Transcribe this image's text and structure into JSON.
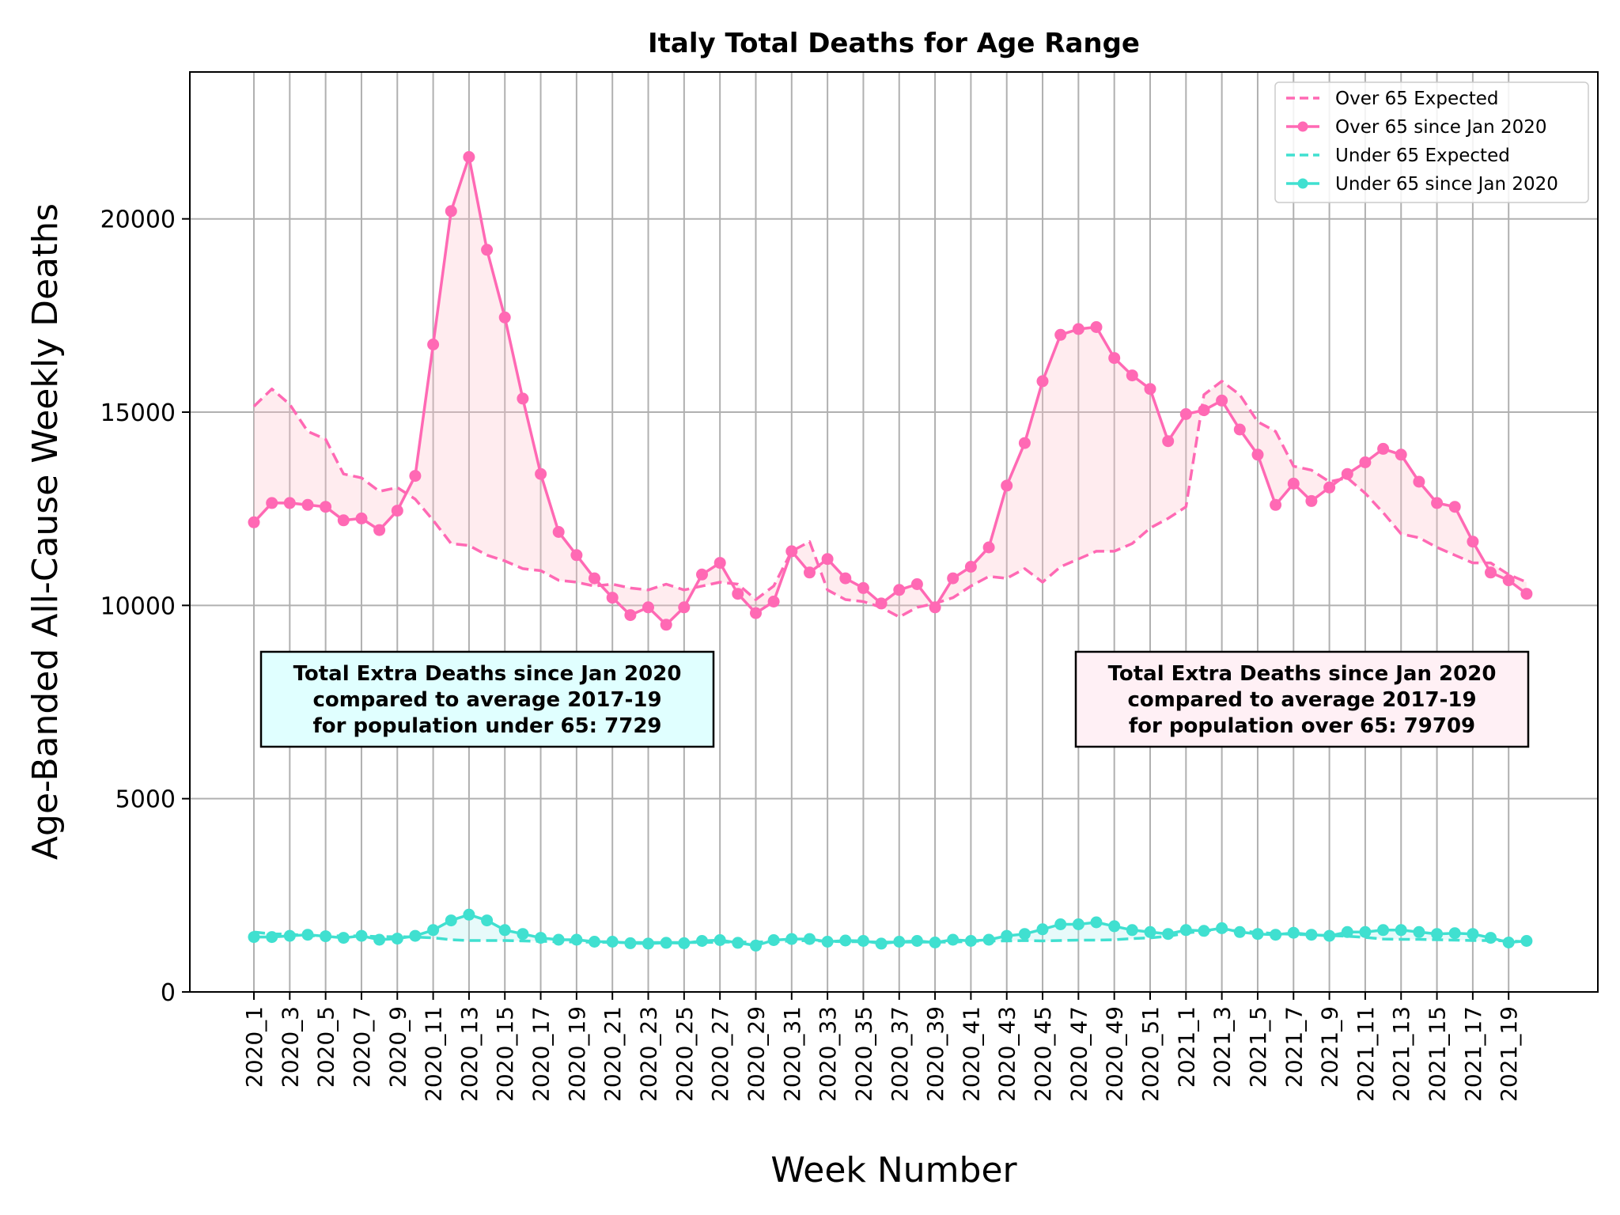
{
  "chart_data": {
    "type": "line",
    "title": "Italy Total Deaths for Age Range",
    "xlabel": "Week Number",
    "ylabel": "Age-Banded All-Cause Weekly Deaths",
    "ylim": [
      0,
      23800
    ],
    "yticks": [
      0,
      5000,
      10000,
      15000,
      20000
    ],
    "grid": true,
    "legend_position": "top-right",
    "x_tick_labels": [
      "2020_1",
      "2020_3",
      "2020_5",
      "2020_7",
      "2020_9",
      "2020_11",
      "2020_13",
      "2020_15",
      "2020_17",
      "2020_19",
      "2020_21",
      "2020_23",
      "2020_25",
      "2020_27",
      "2020_29",
      "2020_31",
      "2020_33",
      "2020_35",
      "2020_37",
      "2020_39",
      "2020_41",
      "2020_43",
      "2020_45",
      "2020_47",
      "2020_49",
      "2020_51",
      "2021_1",
      "2021_3",
      "2021_5",
      "2021_7",
      "2021_9",
      "2021_11",
      "2021_13",
      "2021_15",
      "2021_17",
      "2021_19"
    ],
    "x": [
      "2020_1",
      "2020_2",
      "2020_3",
      "2020_4",
      "2020_5",
      "2020_6",
      "2020_7",
      "2020_8",
      "2020_9",
      "2020_10",
      "2020_11",
      "2020_12",
      "2020_13",
      "2020_14",
      "2020_15",
      "2020_16",
      "2020_17",
      "2020_18",
      "2020_19",
      "2020_20",
      "2020_21",
      "2020_22",
      "2020_23",
      "2020_24",
      "2020_25",
      "2020_26",
      "2020_27",
      "2020_28",
      "2020_29",
      "2020_30",
      "2020_31",
      "2020_32",
      "2020_33",
      "2020_34",
      "2020_35",
      "2020_36",
      "2020_37",
      "2020_38",
      "2020_39",
      "2020_40",
      "2020_41",
      "2020_42",
      "2020_43",
      "2020_44",
      "2020_45",
      "2020_46",
      "2020_47",
      "2020_48",
      "2020_49",
      "2020_50",
      "2020_51",
      "2020_52",
      "2021_1",
      "2021_2",
      "2021_3",
      "2021_4",
      "2021_5",
      "2021_6",
      "2021_7",
      "2021_8",
      "2021_9",
      "2021_10",
      "2021_11",
      "2021_12",
      "2021_13",
      "2021_14",
      "2021_15",
      "2021_16",
      "2021_17",
      "2021_18",
      "2021_19",
      "2021_20"
    ],
    "series": [
      {
        "name": "Over 65 Expected",
        "style": "dashed",
        "color": "#ff69b4",
        "values": [
          15150,
          15600,
          15200,
          14500,
          14300,
          13400,
          13300,
          12950,
          13050,
          12750,
          12200,
          11600,
          11550,
          11300,
          11150,
          10950,
          10900,
          10650,
          10600,
          10500,
          10550,
          10450,
          10400,
          10550,
          10400,
          10500,
          10600,
          10550,
          10150,
          10500,
          11400,
          11650,
          10400,
          10150,
          10100,
          9950,
          9700,
          9950,
          10050,
          10200,
          10500,
          10750,
          10700,
          10950,
          10600,
          11000,
          11200,
          11400,
          11400,
          11600,
          12000,
          12250,
          12550,
          15450,
          15800,
          15450,
          14750,
          14500,
          13600,
          13500,
          13200,
          13300,
          12900,
          12400,
          11850,
          11750,
          11500,
          11300,
          11100,
          11100,
          10800,
          10600
        ]
      },
      {
        "name": "Over 65 since Jan 2020",
        "style": "solid-markers",
        "color": "#ff69b4",
        "values": [
          12150,
          12650,
          12650,
          12600,
          12550,
          12200,
          12250,
          11950,
          12450,
          13350,
          16750,
          20200,
          21600,
          19200,
          17450,
          15350,
          13400,
          11900,
          11300,
          10700,
          10200,
          9750,
          9950,
          9500,
          9950,
          10800,
          11100,
          10300,
          9800,
          10100,
          11400,
          10850,
          11200,
          10700,
          10450,
          10050,
          10400,
          10550,
          9950,
          10700,
          11000,
          11500,
          13100,
          14200,
          15800,
          17000,
          17150,
          17200,
          16400,
          15950,
          15600,
          14250,
          14950,
          15050,
          15300,
          14550,
          13900,
          12600,
          13150,
          12700,
          13050,
          13400,
          13700,
          14050,
          13900,
          13200,
          12650,
          12550,
          11650,
          10850,
          10650,
          10300
        ]
      },
      {
        "name": "Under 65 Expected",
        "style": "dashed",
        "color": "#40e0d0",
        "values": [
          1550,
          1500,
          1500,
          1450,
          1450,
          1450,
          1450,
          1430,
          1430,
          1420,
          1400,
          1350,
          1330,
          1330,
          1330,
          1320,
          1310,
          1300,
          1290,
          1290,
          1280,
          1280,
          1280,
          1280,
          1280,
          1280,
          1290,
          1290,
          1290,
          1300,
          1320,
          1330,
          1310,
          1300,
          1300,
          1290,
          1290,
          1290,
          1290,
          1290,
          1310,
          1320,
          1320,
          1330,
          1320,
          1330,
          1340,
          1340,
          1350,
          1380,
          1400,
          1440,
          1520,
          1580,
          1600,
          1580,
          1540,
          1510,
          1490,
          1480,
          1460,
          1440,
          1410,
          1370,
          1360,
          1360,
          1350,
          1340,
          1330,
          1330,
          1320,
          1300
        ]
      },
      {
        "name": "Under 65 since Jan 2020",
        "style": "solid-markers",
        "color": "#40e0d0",
        "values": [
          1420,
          1420,
          1450,
          1480,
          1440,
          1400,
          1450,
          1350,
          1380,
          1450,
          1600,
          1850,
          2000,
          1850,
          1600,
          1500,
          1400,
          1350,
          1350,
          1300,
          1300,
          1260,
          1250,
          1270,
          1260,
          1320,
          1340,
          1270,
          1200,
          1340,
          1370,
          1370,
          1300,
          1330,
          1320,
          1250,
          1300,
          1320,
          1280,
          1350,
          1320,
          1350,
          1450,
          1500,
          1620,
          1750,
          1750,
          1800,
          1700,
          1600,
          1550,
          1500,
          1600,
          1580,
          1650,
          1550,
          1500,
          1480,
          1530,
          1480,
          1450,
          1550,
          1550,
          1600,
          1600,
          1550,
          1500,
          1520,
          1500,
          1400,
          1280,
          1320
        ]
      }
    ],
    "annotations": [
      {
        "id": "under65",
        "lines": [
          "Total Extra Deaths since Jan 2020",
          "compared to average 2017-19",
          "for population under 65: 7729"
        ],
        "bg": "#e0ffff"
      },
      {
        "id": "over65",
        "lines": [
          "Total Extra Deaths since Jan 2020",
          "compared to average 2017-19",
          "for population over 65: 79709"
        ],
        "bg": "#fff0f5"
      }
    ]
  }
}
